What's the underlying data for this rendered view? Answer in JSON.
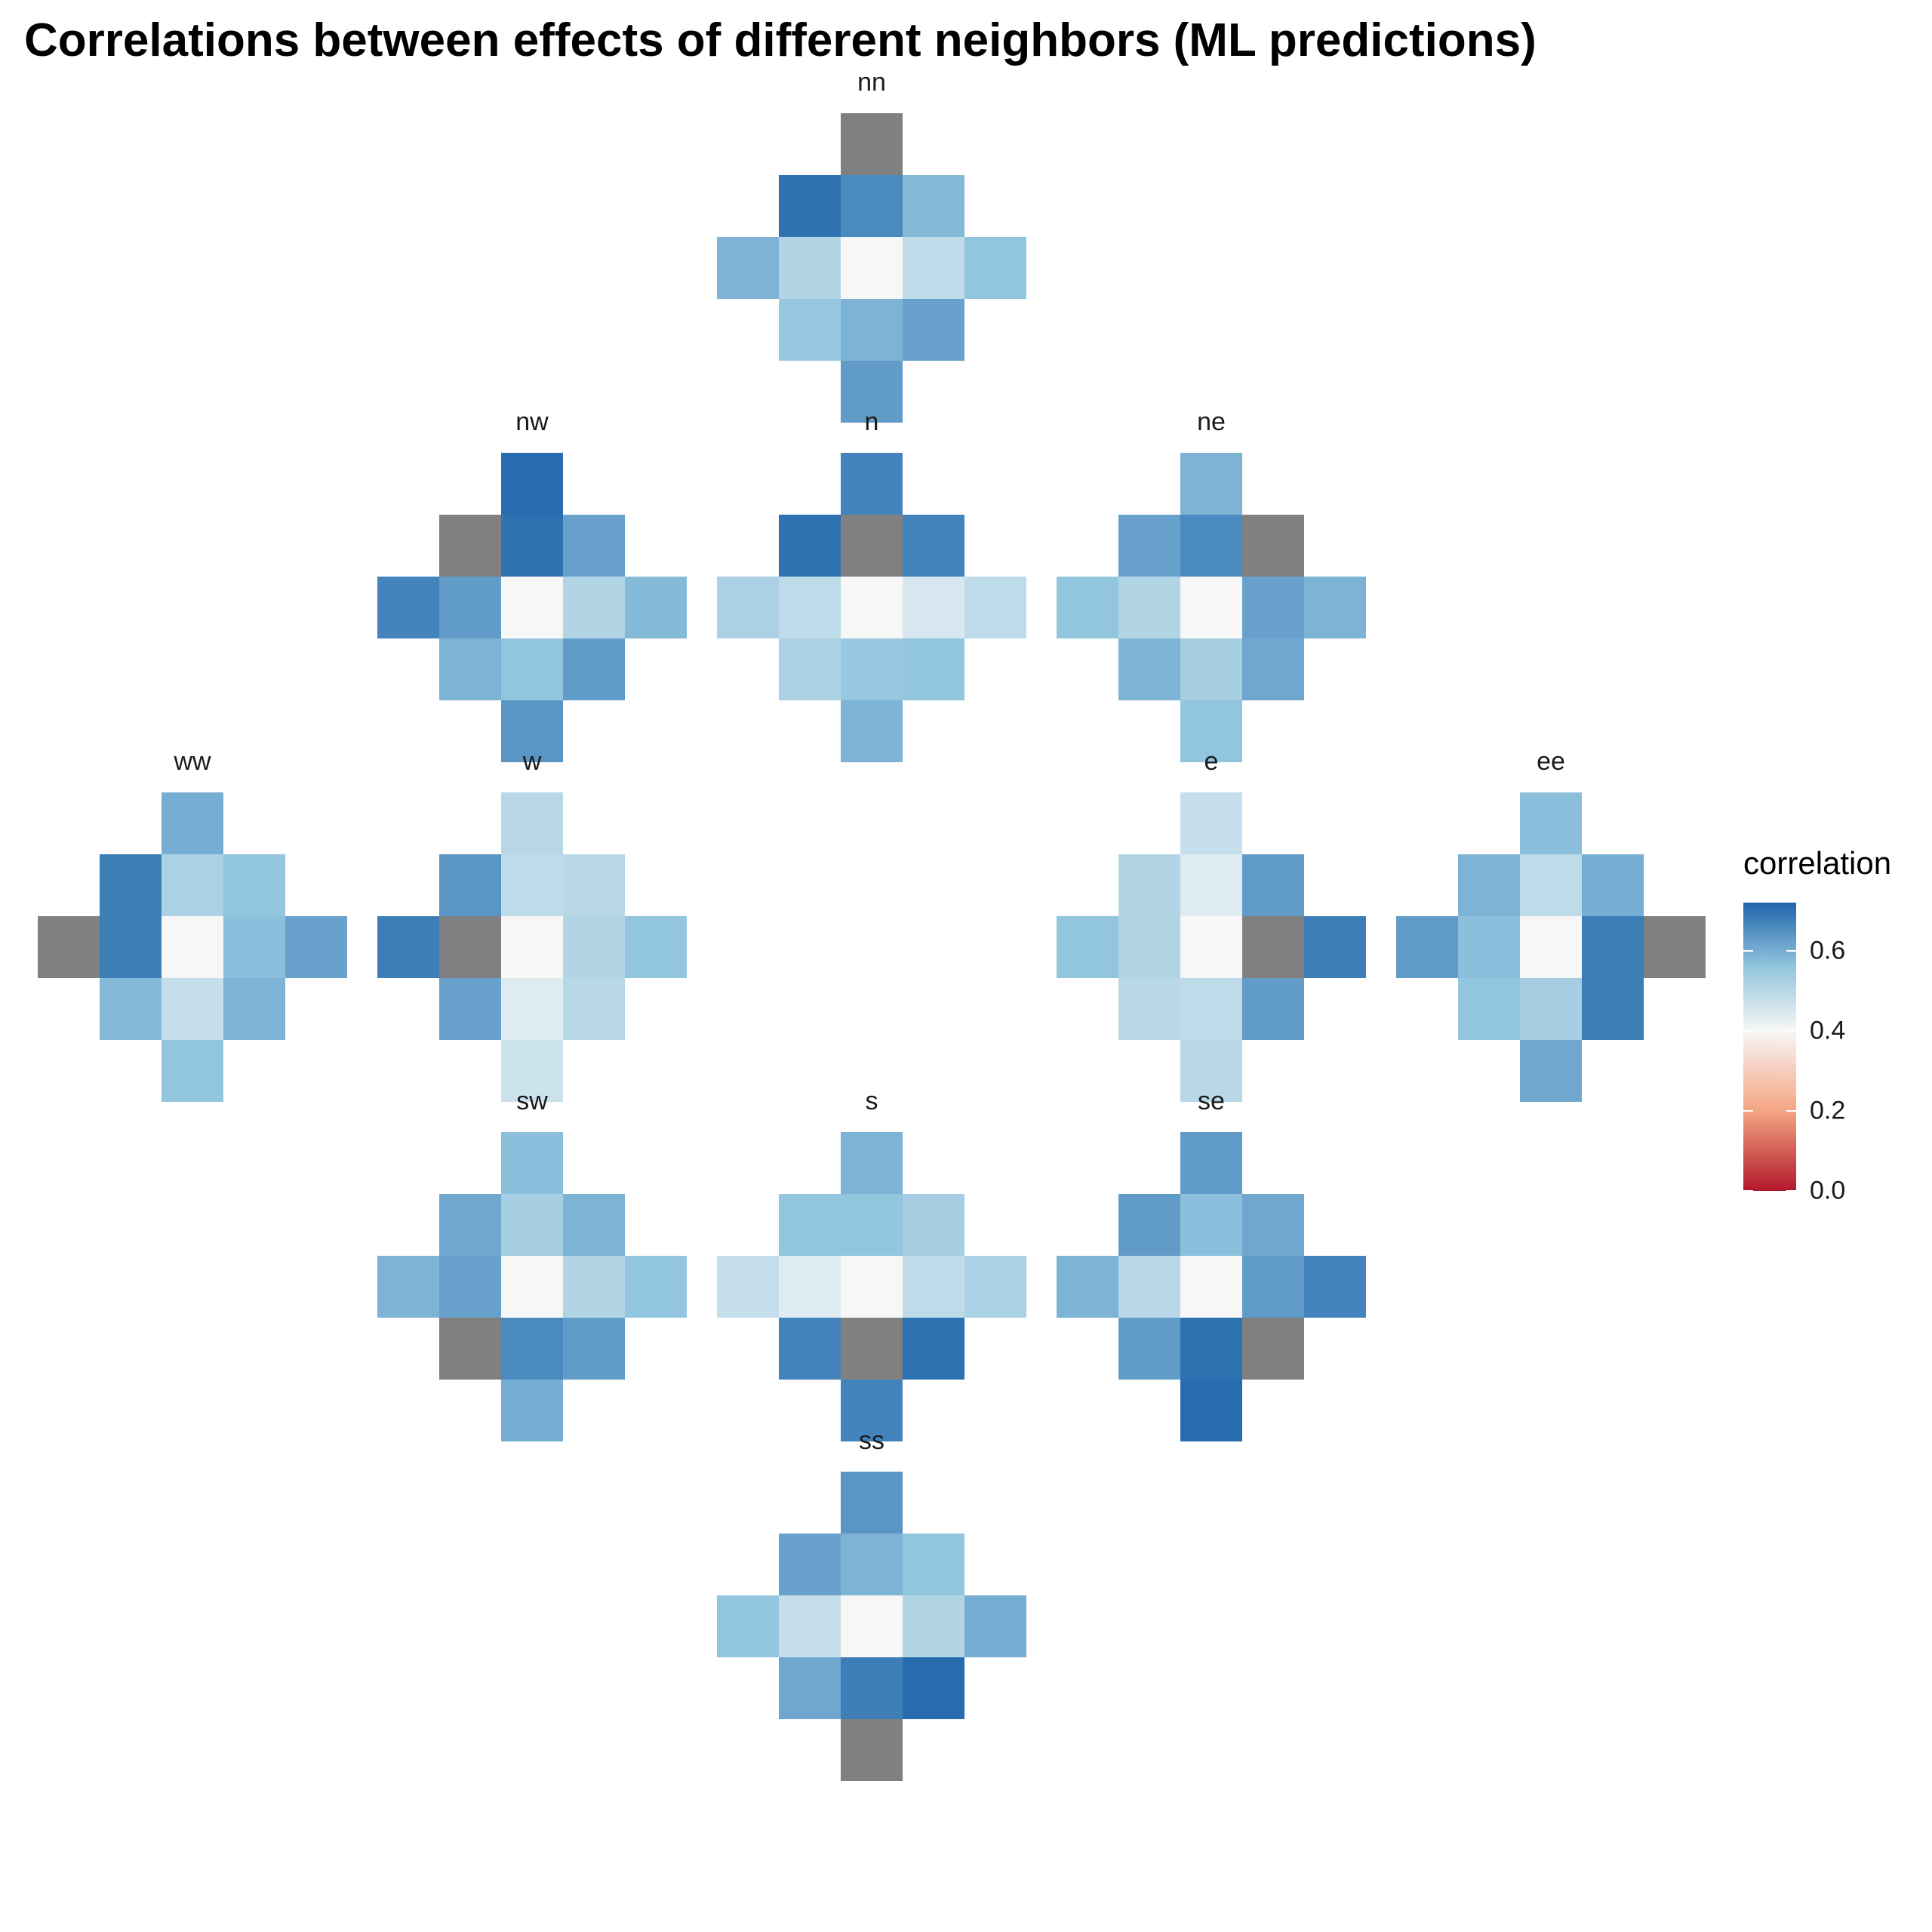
{
  "chart_data": {
    "type": "heatmap",
    "title": "Correlations between effects of different neighbors (ML predictions)",
    "legend": {
      "title": "correlation",
      "placement": "right",
      "range": [
        0.0,
        0.72
      ],
      "ticks": [
        "0.0",
        "0.2",
        "0.4",
        "0.6"
      ],
      "tick_values": [
        0.0,
        0.2,
        0.4,
        0.6
      ],
      "colors": {
        "low": "#b2182b",
        "mid_low": "#f4a582",
        "mid": "#f7f7f7",
        "mid_high": "#92c5de",
        "high": "#2166ac",
        "self": "#808080"
      }
    },
    "neighbor_offsets": {
      "nn": [
        0,
        -2
      ],
      "nw": [
        -1,
        -1
      ],
      "n": [
        0,
        -1
      ],
      "ne": [
        1,
        -1
      ],
      "ww": [
        -2,
        0
      ],
      "w": [
        -1,
        0
      ],
      "c": [
        0,
        0
      ],
      "e": [
        1,
        0
      ],
      "ee": [
        2,
        0
      ],
      "sw": [
        -1,
        1
      ],
      "s": [
        0,
        1
      ],
      "se": [
        1,
        1
      ],
      "ss": [
        0,
        2
      ]
    },
    "panels": [
      {
        "name": "nn",
        "values": {
          "nn": "self",
          "nw": 0.7,
          "n": 0.66,
          "ne": 0.58,
          "ww": 0.59,
          "w": 0.51,
          "c": 0.4,
          "e": 0.49,
          "ee": 0.56,
          "sw": 0.55,
          "s": 0.59,
          "se": 0.62,
          "ss": 0.63
        }
      },
      {
        "name": "nw",
        "values": {
          "nn": 0.71,
          "nw": "self",
          "n": 0.7,
          "ne": 0.62,
          "ww": 0.67,
          "w": 0.63,
          "c": 0.4,
          "e": 0.51,
          "ee": 0.58,
          "sw": 0.59,
          "s": 0.56,
          "se": 0.63,
          "ss": 0.64
        }
      },
      {
        "name": "n",
        "values": {
          "nn": 0.67,
          "nw": 0.7,
          "n": "self",
          "ne": 0.67,
          "ww": 0.52,
          "w": 0.49,
          "c": 0.4,
          "e": 0.45,
          "ee": 0.49,
          "sw": 0.52,
          "s": 0.55,
          "se": 0.56,
          "ss": 0.59
        }
      },
      {
        "name": "ne",
        "values": {
          "nn": 0.59,
          "nw": 0.62,
          "n": 0.66,
          "ne": "self",
          "ww": 0.56,
          "w": 0.51,
          "c": 0.4,
          "e": 0.62,
          "ee": 0.59,
          "sw": 0.59,
          "s": 0.53,
          "se": 0.61,
          "ss": 0.56
        }
      },
      {
        "name": "ww",
        "values": {
          "nn": 0.6,
          "nw": 0.68,
          "n": 0.52,
          "ne": 0.56,
          "ww": "self",
          "w": 0.68,
          "c": 0.4,
          "e": 0.57,
          "ee": 0.62,
          "sw": 0.58,
          "s": 0.48,
          "se": 0.59,
          "ss": 0.56
        }
      },
      {
        "name": "w",
        "values": {
          "nn": 0.5,
          "nw": 0.64,
          "n": 0.49,
          "ne": 0.5,
          "ww": 0.68,
          "w": "self",
          "c": 0.4,
          "e": 0.51,
          "ee": 0.56,
          "sw": 0.62,
          "s": 0.44,
          "se": 0.5,
          "ss": 0.47
        }
      },
      {
        "name": "e",
        "values": {
          "nn": 0.48,
          "nw": 0.51,
          "n": 0.44,
          "ne": 0.63,
          "ww": 0.56,
          "w": 0.51,
          "c": 0.4,
          "e": "self",
          "ee": 0.68,
          "sw": 0.5,
          "s": 0.49,
          "se": 0.63,
          "ss": 0.5
        }
      },
      {
        "name": "ee",
        "values": {
          "nn": 0.57,
          "nw": 0.59,
          "n": 0.49,
          "ne": 0.6,
          "ww": 0.63,
          "w": 0.57,
          "c": 0.4,
          "e": 0.68,
          "ee": "self",
          "sw": 0.56,
          "s": 0.53,
          "se": 0.68,
          "ss": 0.61
        }
      },
      {
        "name": "sw",
        "values": {
          "nn": 0.57,
          "nw": 0.61,
          "n": 0.53,
          "ne": 0.59,
          "ww": 0.59,
          "w": 0.62,
          "c": 0.4,
          "e": 0.51,
          "ee": 0.56,
          "sw": "self",
          "s": 0.66,
          "se": 0.63,
          "ss": 0.6
        }
      },
      {
        "name": "s",
        "values": {
          "nn": 0.59,
          "nw": 0.56,
          "n": 0.56,
          "ne": 0.53,
          "ww": 0.48,
          "w": 0.44,
          "c": 0.4,
          "e": 0.49,
          "ee": 0.52,
          "sw": 0.67,
          "s": "self",
          "se": 0.7,
          "ss": 0.67
        }
      },
      {
        "name": "se",
        "values": {
          "nn": 0.63,
          "nw": 0.63,
          "n": 0.57,
          "ne": 0.61,
          "ww": 0.59,
          "w": 0.5,
          "c": 0.4,
          "e": 0.63,
          "ee": 0.67,
          "sw": 0.63,
          "s": 0.7,
          "se": "self",
          "ss": 0.71
        }
      },
      {
        "name": "ss",
        "values": {
          "nn": 0.64,
          "nw": 0.62,
          "n": 0.59,
          "ne": 0.56,
          "ww": 0.56,
          "w": 0.48,
          "c": 0.4,
          "e": 0.51,
          "ee": 0.6,
          "sw": 0.61,
          "s": 0.68,
          "se": 0.71,
          "ss": "self"
        }
      }
    ]
  }
}
